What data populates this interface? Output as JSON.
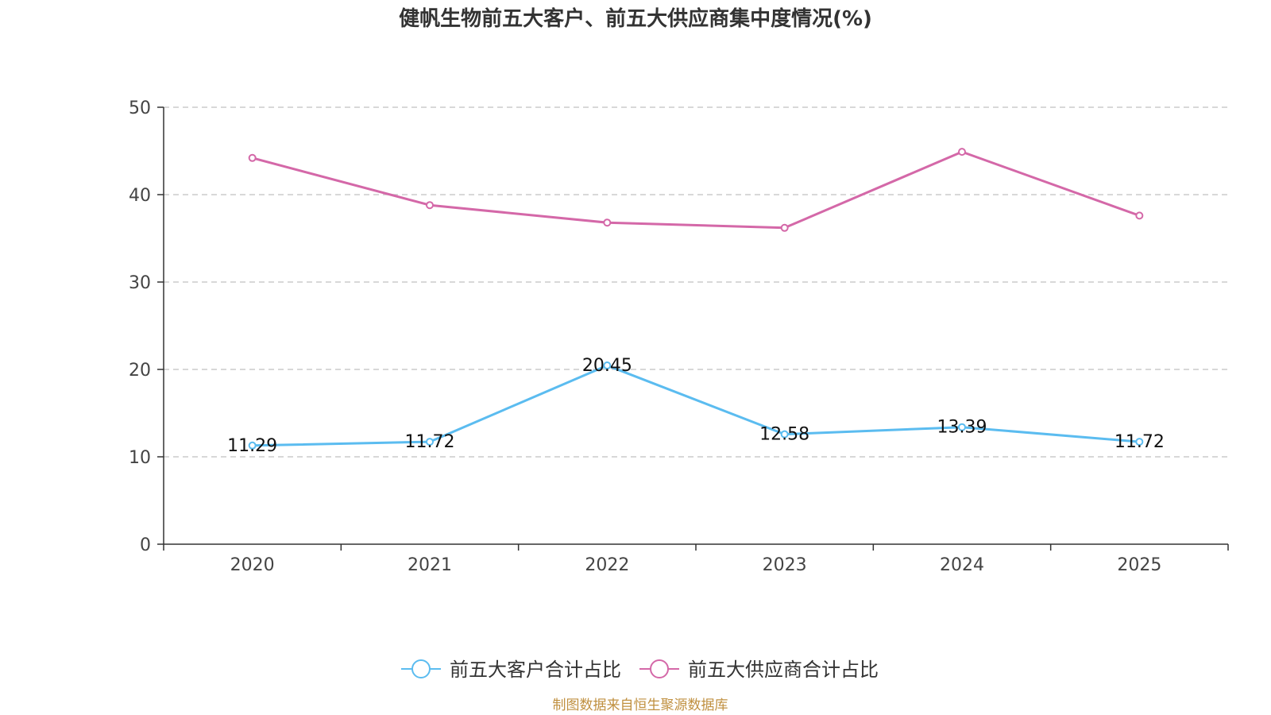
{
  "chart_data": {
    "type": "line",
    "title": "健帆生物前五大客户、前五大供应商集中度情况(%)",
    "categories": [
      "2020",
      "2021",
      "2022",
      "2023",
      "2024",
      "2025"
    ],
    "ylim": [
      0,
      50
    ],
    "yticks": [
      0,
      10,
      20,
      30,
      40,
      50
    ],
    "grid": true,
    "legend_position": "bottom",
    "series": [
      {
        "name": "前五大客户合计占比",
        "color": "#5bbcf0",
        "values": [
          11.29,
          11.72,
          20.45,
          12.58,
          13.39,
          11.72
        ],
        "labels": [
          "11.29",
          "11.72",
          "20.45",
          "12.58",
          "13.39",
          "11.72"
        ],
        "show_labels": true
      },
      {
        "name": "前五大供应商合计占比",
        "color": "#d468a8",
        "values": [
          44.2,
          38.8,
          36.8,
          36.2,
          44.9,
          37.6
        ],
        "show_labels": false
      }
    ]
  },
  "source": "制图数据来自恒生聚源数据库"
}
